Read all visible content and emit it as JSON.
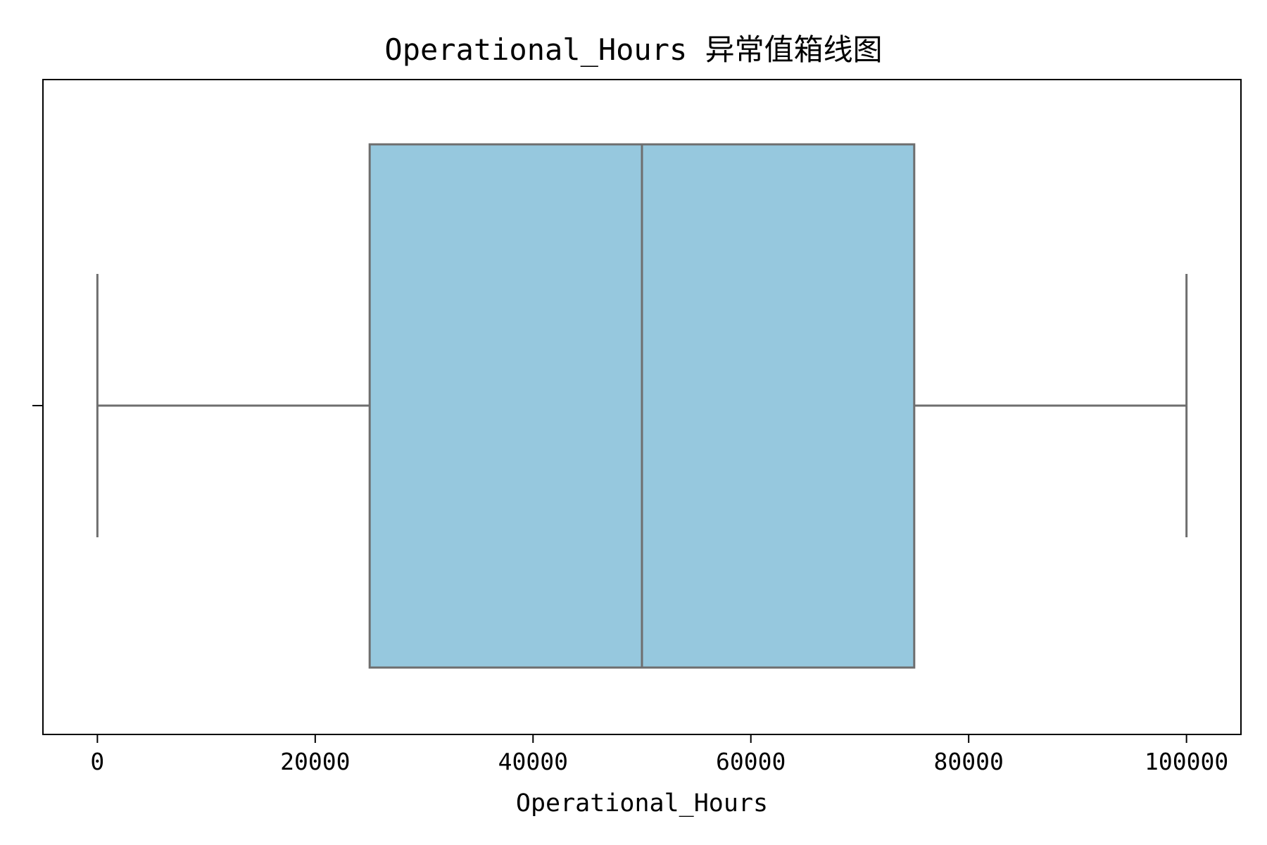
{
  "chart_data": {
    "type": "box",
    "title": "Operational_Hours 异常值箱线图",
    "xlabel": "Operational_Hours",
    "ylabel": "",
    "xlim": [
      -5000,
      105000
    ],
    "xticks": [
      0,
      20000,
      40000,
      60000,
      80000,
      100000
    ],
    "xtick_labels": [
      "0",
      "20000",
      "40000",
      "60000",
      "80000",
      "100000"
    ],
    "box": {
      "whisker_low": 0,
      "q1": 25000,
      "median": 50000,
      "q3": 75000,
      "whisker_high": 100000
    },
    "orientation": "horizontal",
    "grid": false,
    "colors": {
      "box_fill": "#96c8de",
      "box_edge": "#6e6e6e",
      "axis": "#000000"
    }
  }
}
